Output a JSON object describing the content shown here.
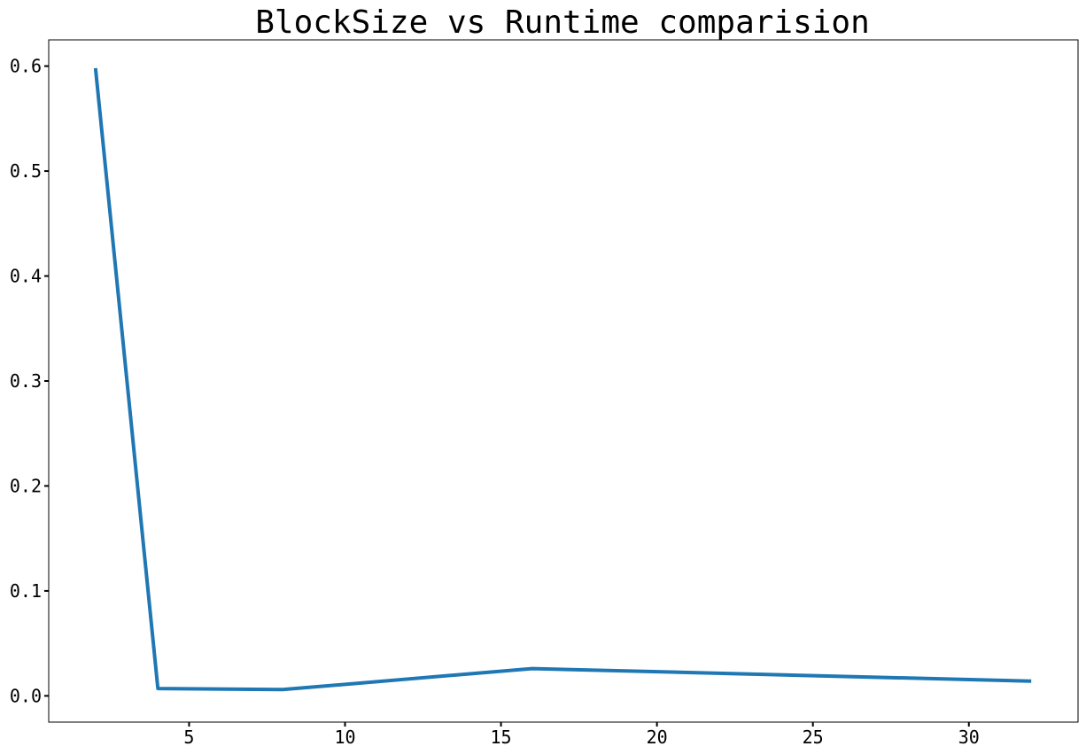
{
  "chart_data": {
    "type": "line",
    "title": "BlockSize vs Runtime comparision",
    "xlabel": "",
    "ylabel": "",
    "x": [
      2,
      4,
      8,
      16,
      32
    ],
    "series": [
      {
        "values": [
          0.598,
          0.007,
          0.006,
          0.026,
          0.014
        ],
        "color": "#1f77b4"
      }
    ],
    "xlim": [
      0.5,
      33.5
    ],
    "ylim": [
      -0.025,
      0.625
    ],
    "xticks": [
      5,
      10,
      15,
      20,
      25,
      30
    ],
    "yticks": [
      0.0,
      0.1,
      0.2,
      0.3,
      0.4,
      0.5,
      0.6
    ],
    "xtick_labels": [
      "5",
      "10",
      "15",
      "20",
      "25",
      "30"
    ],
    "ytick_labels": [
      "0.0",
      "0.1",
      "0.2",
      "0.3",
      "0.4",
      "0.5",
      "0.6"
    ],
    "grid": false,
    "legend": "none"
  }
}
